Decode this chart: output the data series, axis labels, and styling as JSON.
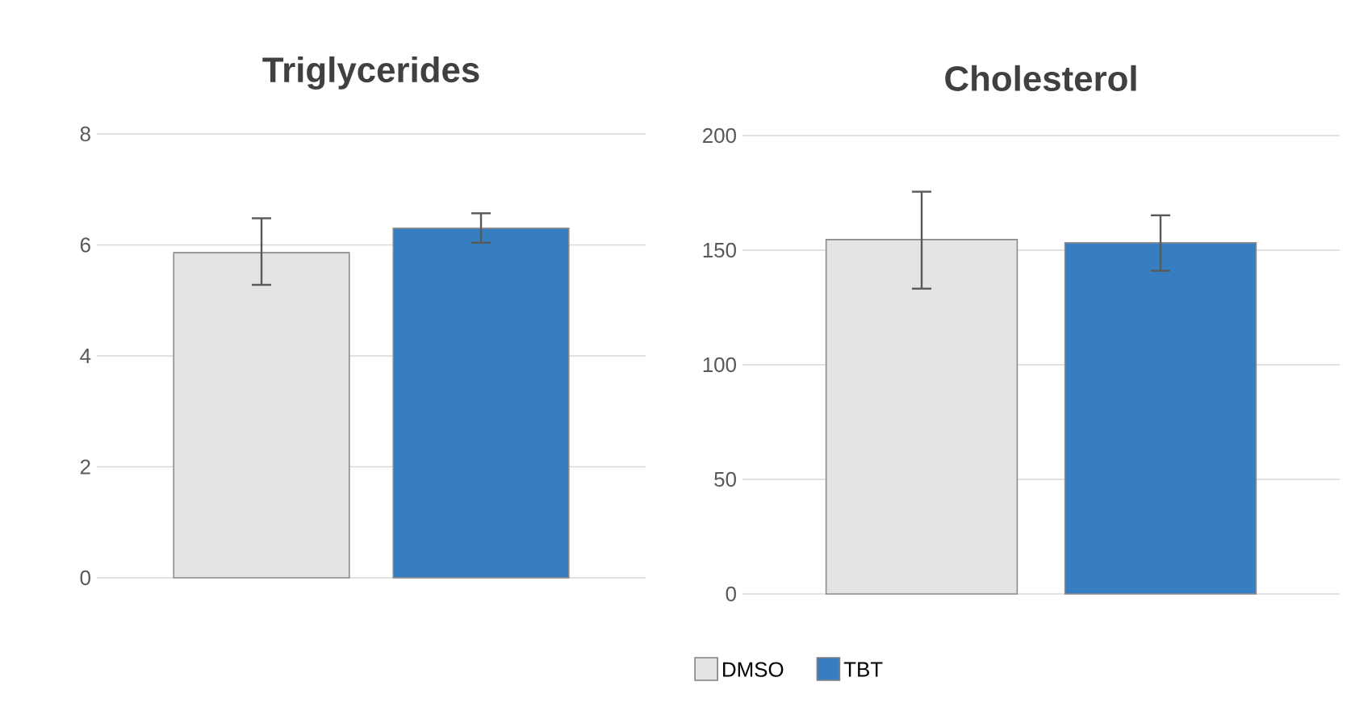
{
  "chart_data": [
    {
      "type": "bar",
      "title": "Triglycerides",
      "categories": [
        null
      ],
      "ylim": [
        0,
        8
      ],
      "yticks": [
        0,
        2,
        4,
        6,
        8
      ],
      "grid": "y",
      "tick_labels": "y",
      "series": [
        {
          "color": "#e4e4e4",
          "values": [
            5.86
          ],
          "errors": [
            [
              5.28,
              6.48
            ]
          ]
        },
        {
          "color": "#367dc1",
          "values": [
            6.3
          ],
          "errors": [
            [
              6.04,
              6.57
            ]
          ]
        }
      ]
    },
    {
      "type": "bar",
      "title": "Cholesterol",
      "categories": [
        null
      ],
      "ylim": [
        0,
        200
      ],
      "yticks": [
        0,
        50,
        100,
        150,
        200
      ],
      "grid": "y",
      "tick_labels": "y",
      "legend": "bottom",
      "series": [
        {
          "name": "DMSO",
          "color": "#e4e4e4",
          "values": [
            154.6
          ],
          "errors": [
            [
              133.2,
              175.5
            ]
          ]
        },
        {
          "name": "TBT",
          "color": "#367dc1",
          "values": [
            153.2
          ],
          "errors": [
            [
              141,
              165.2
            ]
          ]
        }
      ]
    }
  ]
}
